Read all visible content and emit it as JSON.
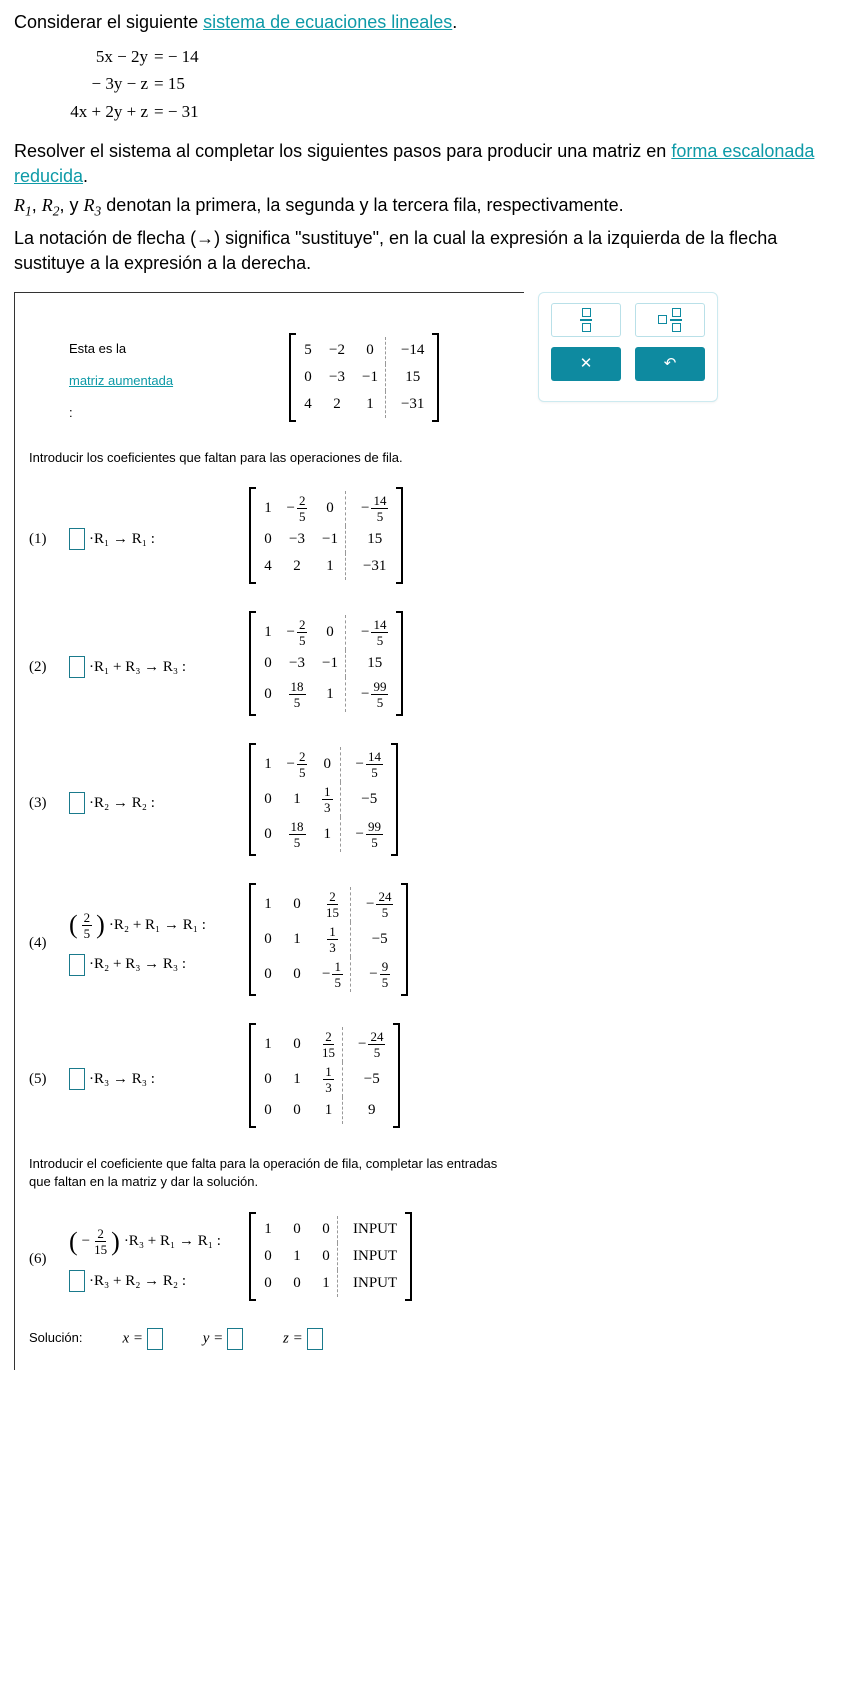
{
  "intro": {
    "prefix": "Considerar el siguiente ",
    "link": "sistema de ecuaciones lineales",
    "suffix": "."
  },
  "equations": [
    {
      "lhs": "5x − 2y",
      "rhs": "= − 14"
    },
    {
      "lhs": "− 3y − z",
      "rhs": "= 15"
    },
    {
      "lhs": "4x + 2y + z",
      "rhs": "= − 31"
    }
  ],
  "instructions": {
    "p1a": "Resolver el sistema al completar los siguientes pasos para producir una matriz en ",
    "p1link": "forma escalonada reducida",
    "p1b": ".",
    "p2": " denotan la primera, la segunda y la tercera fila, respectivamente.",
    "p3": "La notación de flecha (→) significa \"sustituye\", en la cual la expresión a la izquierda de la flecha sustituye a la expresión a la derecha."
  },
  "rowLabels": {
    "r1": "R",
    "s1": "1",
    "r2": "R",
    "s2": "2",
    "r3": "R",
    "s3": "3",
    "sep": ", ",
    "and": " y "
  },
  "augmentedLabel": {
    "prefix": "Esta es la ",
    "link": "matriz aumentada",
    "suffix": ":"
  },
  "augMatrix": {
    "rows": [
      [
        "5",
        "−2",
        "0",
        "−14"
      ],
      [
        "0",
        "−3",
        "−1",
        "15"
      ],
      [
        "4",
        "2",
        "1",
        "−31"
      ]
    ]
  },
  "coeffInstruction": "Introducir los coeficientes que faltan para las operaciones de fila.",
  "steps": {
    "s1": {
      "label": "(1)",
      "op": "·R₁ → R₁ :",
      "matrix": [
        [
          "1",
          {
            "neg": "−",
            "n": "2",
            "d": "5"
          },
          "0",
          {
            "neg": "−",
            "n": "14",
            "d": "5"
          }
        ],
        [
          "0",
          "−3",
          "−1",
          "15"
        ],
        [
          "4",
          "2",
          "1",
          "−31"
        ]
      ]
    },
    "s2": {
      "label": "(2)",
      "op": "·R₁ + R₃ → R₃ :",
      "matrix": [
        [
          "1",
          {
            "neg": "−",
            "n": "2",
            "d": "5"
          },
          "0",
          {
            "neg": "−",
            "n": "14",
            "d": "5"
          }
        ],
        [
          "0",
          "−3",
          "−1",
          "15"
        ],
        [
          "0",
          {
            "n": "18",
            "d": "5"
          },
          "1",
          {
            "neg": "−",
            "n": "99",
            "d": "5"
          }
        ]
      ]
    },
    "s3": {
      "label": "(3)",
      "op": "·R₂ → R₂ :",
      "matrix": [
        [
          "1",
          {
            "neg": "−",
            "n": "2",
            "d": "5"
          },
          "0",
          {
            "neg": "−",
            "n": "14",
            "d": "5"
          }
        ],
        [
          "0",
          "1",
          {
            "n": "1",
            "d": "3"
          },
          "−5"
        ],
        [
          "0",
          {
            "n": "18",
            "d": "5"
          },
          "1",
          {
            "neg": "−",
            "n": "99",
            "d": "5"
          }
        ]
      ]
    },
    "s4": {
      "label": "(4)",
      "op1pre": {
        "n": "2",
        "d": "5"
      },
      "op1": "·R₂ + R₁ → R₁ :",
      "op2": "·R₂ + R₃ → R₃ :",
      "matrix": [
        [
          "1",
          "0",
          {
            "n": "2",
            "d": "15"
          },
          {
            "neg": "−",
            "n": "24",
            "d": "5"
          }
        ],
        [
          "0",
          "1",
          {
            "n": "1",
            "d": "3"
          },
          "−5"
        ],
        [
          "0",
          "0",
          {
            "neg": "−",
            "n": "1",
            "d": "5"
          },
          {
            "neg": "−",
            "n": "9",
            "d": "5"
          }
        ]
      ]
    },
    "s5": {
      "label": "(5)",
      "op": "·R₃ → R₃ :",
      "matrix": [
        [
          "1",
          "0",
          {
            "n": "2",
            "d": "15"
          },
          {
            "neg": "−",
            "n": "24",
            "d": "5"
          }
        ],
        [
          "0",
          "1",
          {
            "n": "1",
            "d": "3"
          },
          "−5"
        ],
        [
          "0",
          "0",
          "1",
          "9"
        ]
      ]
    }
  },
  "finalInstruction": "Introducir el coeficiente que falta para la operación de fila, completar las entradas que faltan en la matriz y dar la solución.",
  "s6": {
    "label": "(6)",
    "op1pre": {
      "neg": "−",
      "n": "2",
      "d": "15"
    },
    "op1": "·R₃ + R₁ → R₁ :",
    "op2": "·R₃ + R₂ → R₂ :",
    "matrix": [
      [
        "1",
        "0",
        "0"
      ],
      [
        "0",
        "1",
        "0"
      ],
      [
        "0",
        "0",
        "1"
      ]
    ]
  },
  "solution": {
    "label": "Solución:",
    "x": "x =",
    "y": "y =",
    "z": "z ="
  },
  "toolbox": {
    "close": "✕",
    "undo": "↶"
  },
  "colors": {
    "link": "#0e9aa7",
    "toolBorder": "#cdeaf0",
    "toolBtn": "#0e8aa0"
  }
}
